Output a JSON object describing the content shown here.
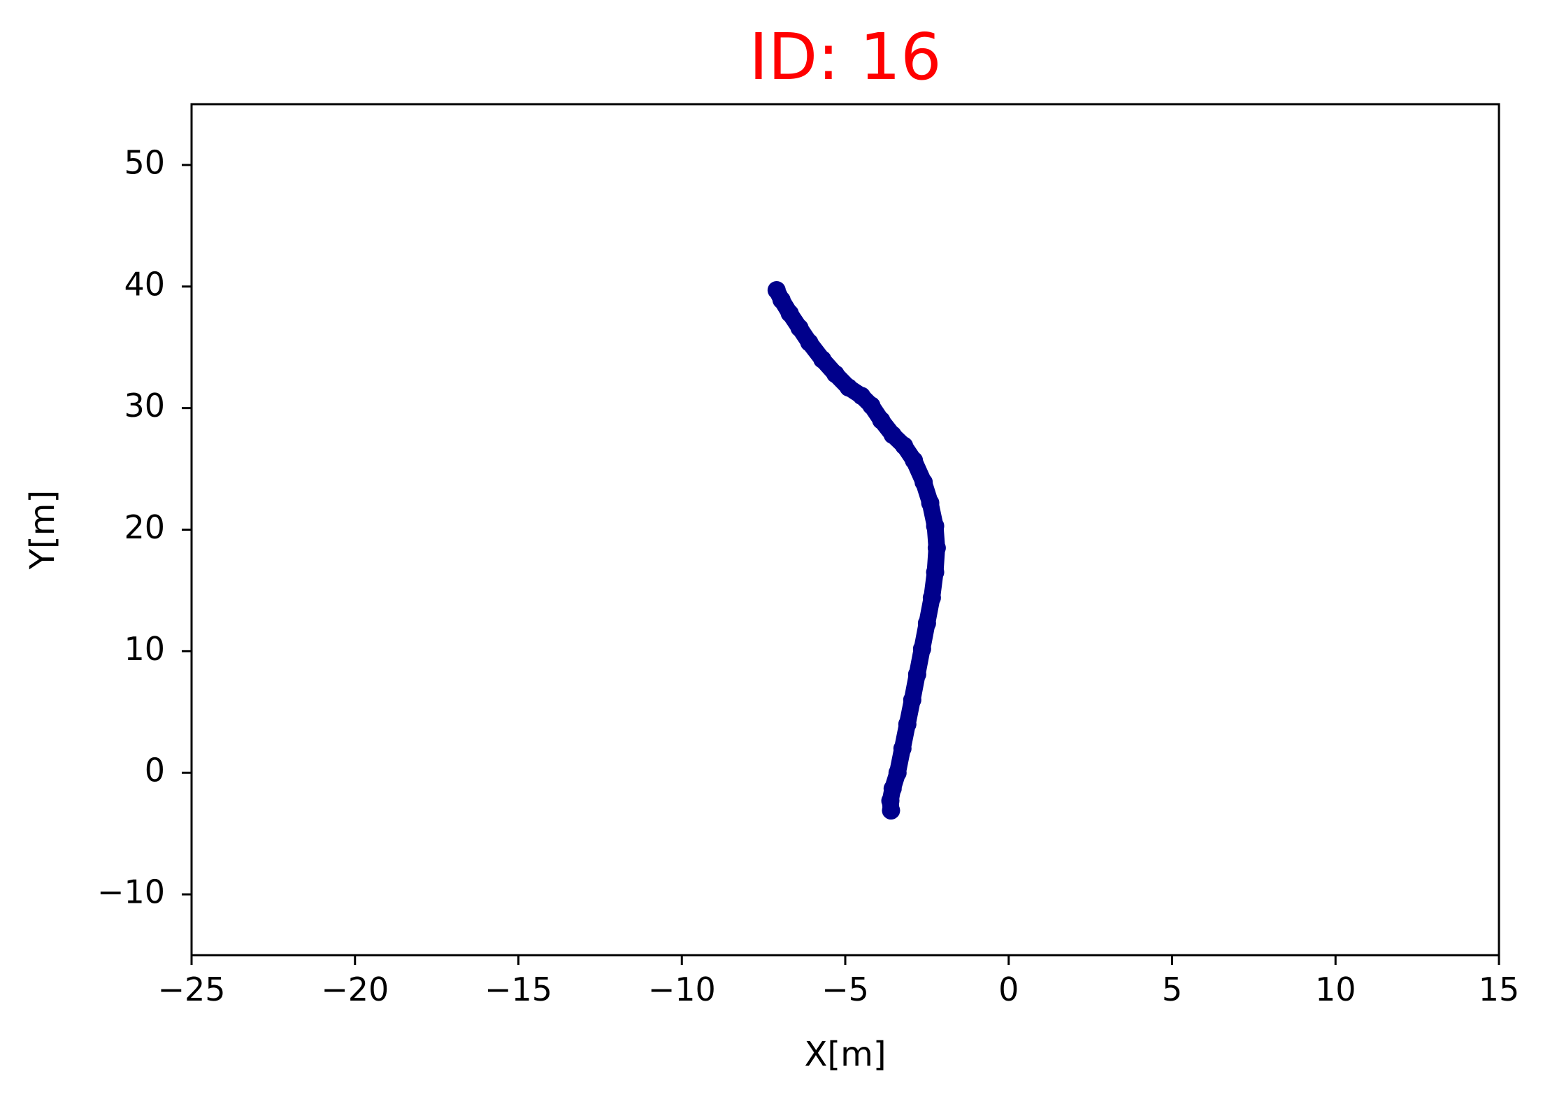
{
  "chart_data": {
    "type": "scatter",
    "title": "ID: 16",
    "title_color": "#ff0000",
    "xlabel": "X[m]",
    "ylabel": "Y[m]",
    "xlim": [
      -25,
      15
    ],
    "ylim": [
      -15,
      55
    ],
    "xticks": [
      -25,
      -20,
      -15,
      -10,
      -5,
      0,
      5,
      10,
      15
    ],
    "xtick_labels": [
      "−25",
      "−20",
      "−15",
      "−10",
      "−5",
      "0",
      "5",
      "10",
      "15"
    ],
    "yticks": [
      -10,
      0,
      10,
      20,
      30,
      40,
      50
    ],
    "ytick_labels": [
      "−10",
      "0",
      "10",
      "20",
      "30",
      "40",
      "50"
    ],
    "grid": false,
    "series": [
      {
        "color": "#00008b",
        "points": [
          [
            -7.1,
            39.7
          ],
          [
            -6.95,
            38.9
          ],
          [
            -6.7,
            37.8
          ],
          [
            -6.4,
            36.6
          ],
          [
            -6.1,
            35.4
          ],
          [
            -5.7,
            34.0
          ],
          [
            -5.3,
            32.8
          ],
          [
            -4.9,
            31.7
          ],
          [
            -4.5,
            31.0
          ],
          [
            -4.2,
            30.2
          ],
          [
            -3.9,
            29.0
          ],
          [
            -3.55,
            27.8
          ],
          [
            -3.2,
            26.9
          ],
          [
            -2.9,
            25.7
          ],
          [
            -2.6,
            23.9
          ],
          [
            -2.4,
            22.2
          ],
          [
            -2.25,
            20.3
          ],
          [
            -2.2,
            18.5
          ],
          [
            -2.25,
            16.5
          ],
          [
            -2.35,
            14.4
          ],
          [
            -2.5,
            12.3
          ],
          [
            -2.65,
            10.2
          ],
          [
            -2.8,
            8.1
          ],
          [
            -2.95,
            6.0
          ],
          [
            -3.1,
            4.0
          ],
          [
            -3.25,
            2.0
          ],
          [
            -3.4,
            0.0
          ],
          [
            -3.55,
            -1.3
          ],
          [
            -3.62,
            -2.3
          ],
          [
            -3.6,
            -3.1
          ]
        ]
      }
    ]
  }
}
